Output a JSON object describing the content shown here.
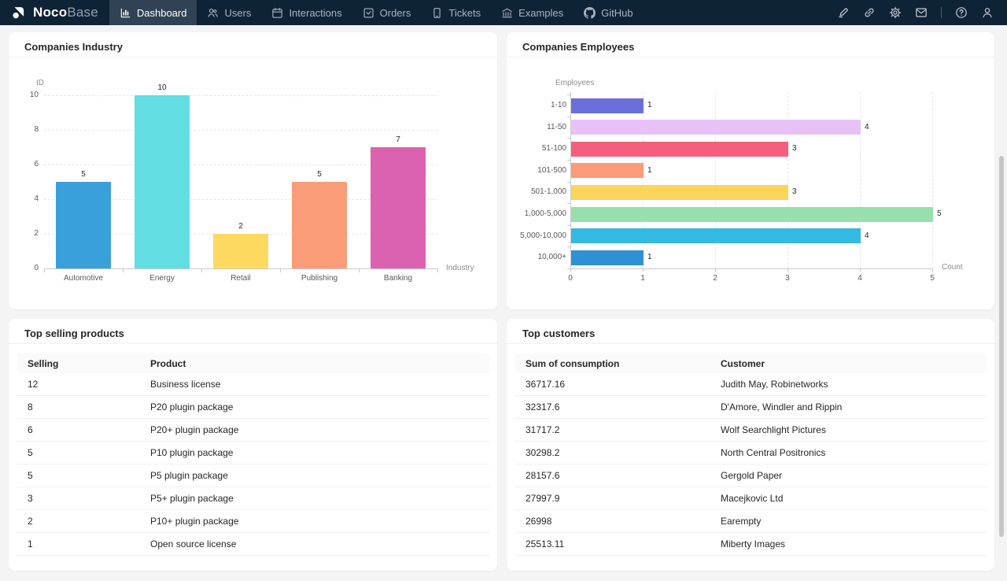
{
  "navbar": {
    "logo": {
      "bold": "Noco",
      "light": "Base"
    },
    "menu": [
      {
        "label": "Dashboard",
        "icon": "dashboard-icon",
        "active": true
      },
      {
        "label": "Users",
        "icon": "users-icon",
        "active": false
      },
      {
        "label": "Interactions",
        "icon": "interactions-icon",
        "active": false
      },
      {
        "label": "Orders",
        "icon": "orders-icon",
        "active": false
      },
      {
        "label": "Tickets",
        "icon": "tickets-icon",
        "active": false
      },
      {
        "label": "Examples",
        "icon": "examples-icon",
        "active": false
      },
      {
        "label": "GitHub",
        "icon": "github-icon",
        "active": false
      }
    ],
    "actions": [
      "highlighter-icon",
      "link-icon",
      "gear-icon",
      "mail-icon",
      "help-icon",
      "user-icon"
    ]
  },
  "cards": [
    {
      "title": "Companies Industry"
    },
    {
      "title": "Companies Employees"
    },
    {
      "title": "Top selling products"
    },
    {
      "title": "Top customers"
    }
  ],
  "chart_data": [
    {
      "type": "bar",
      "orientation": "vertical",
      "title": "Companies Industry",
      "categories": [
        "Automotive",
        "Energy",
        "Retail",
        "Publishing",
        "Banking"
      ],
      "values": [
        5,
        10,
        2,
        5,
        7
      ],
      "colors": [
        "#3aa0dc",
        "#62dde1",
        "#fdd95f",
        "#fb9c78",
        "#db62b0"
      ],
      "xlabel": "Industry",
      "ylabel": "ID",
      "ylim": [
        0,
        10
      ],
      "yticks": [
        0,
        2,
        4,
        6,
        8,
        10
      ],
      "grid": "dashed-horizontal",
      "legend": "none"
    },
    {
      "type": "bar",
      "orientation": "horizontal",
      "title": "Companies Employees",
      "categories": [
        "1-10",
        "11-50",
        "51-100",
        "101-500",
        "501-1,000",
        "1,000-5,000",
        "5,000-10,000",
        "10,000+"
      ],
      "values": [
        1,
        4,
        3,
        1,
        3,
        5,
        4,
        1
      ],
      "colors": [
        "#6b6fdb",
        "#e8c2f6",
        "#f65e7e",
        "#fb9b78",
        "#fbd45b",
        "#97dfab",
        "#34b9e3",
        "#2f90d3"
      ],
      "xlabel": "Count",
      "ylabel": "Employees",
      "xlim": [
        0,
        5
      ],
      "xticks": [
        0,
        1,
        2,
        3,
        4,
        5
      ],
      "grid": "dashed-vertical",
      "legend": "none"
    },
    {
      "type": "table",
      "title": "Top selling products",
      "columns": [
        "Selling",
        "Product"
      ],
      "rows": [
        [
          "12",
          "Business license"
        ],
        [
          "8",
          "P20 plugin package"
        ],
        [
          "6",
          "P20+ plugin package"
        ],
        [
          "5",
          "P10 plugin package"
        ],
        [
          "5",
          "P5 plugin package"
        ],
        [
          "3",
          "P5+ plugin package"
        ],
        [
          "2",
          "P10+ plugin package"
        ],
        [
          "1",
          "Open source license"
        ]
      ]
    },
    {
      "type": "table",
      "title": "Top customers",
      "columns": [
        "Sum of consumption",
        "Customer"
      ],
      "rows": [
        [
          "36717.16",
          "Judith May, Robinetworks"
        ],
        [
          "32317.6",
          "D'Amore, Windler and Rippin"
        ],
        [
          "31717.2",
          "Wolf Searchlight Pictures"
        ],
        [
          "30298.2",
          "North Central Positronics"
        ],
        [
          "28157.6",
          "Gergold Paper"
        ],
        [
          "27997.9",
          "Macejkovic Ltd"
        ],
        [
          "26998",
          "Earempty"
        ],
        [
          "25513.11",
          "Miberty Images"
        ]
      ]
    }
  ]
}
